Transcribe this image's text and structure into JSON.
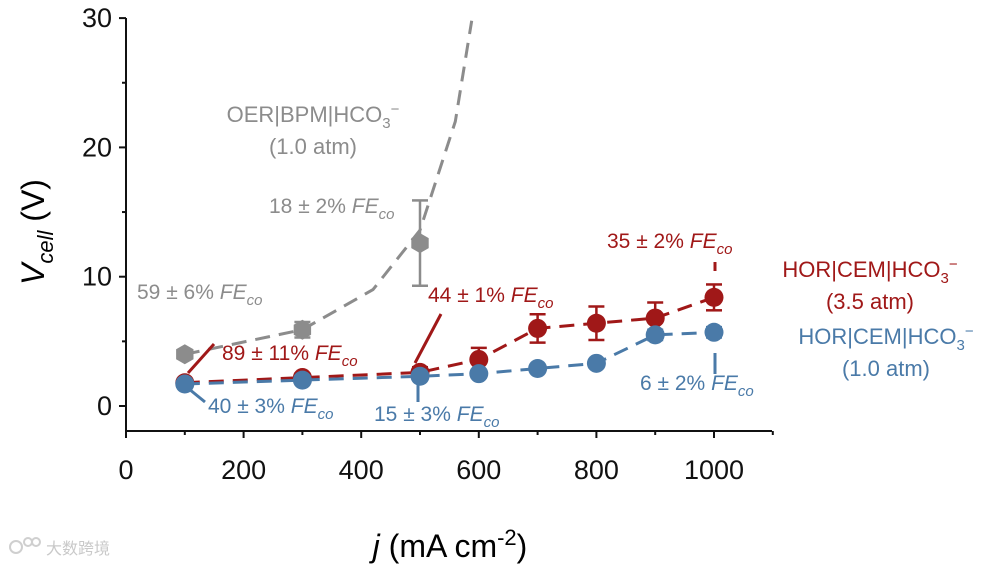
{
  "chart_data": {
    "type": "line",
    "xlabel": {
      "italic": "j",
      "text": " (mA cm",
      "sup": "-2",
      "end": ")"
    },
    "ylabel": {
      "italic": "V",
      "sub": "cell",
      "end": " (V)"
    },
    "xlim": [
      0,
      1100
    ],
    "ylim": [
      -2,
      30
    ],
    "xticks": [
      0,
      200,
      400,
      600,
      800,
      1000
    ],
    "yticks": [
      0,
      10,
      20,
      30
    ],
    "series": [
      {
        "name": "OER|BPM|HCO3− (1.0 atm)",
        "color": "#8c8c8c",
        "x": [
          100,
          300,
          500
        ],
        "y": [
          4.0,
          5.9,
          12.6
        ],
        "err": [
          0.3,
          0.6,
          3.3
        ],
        "trend": [
          [
            100,
            4.0
          ],
          [
            300,
            5.9
          ],
          [
            420,
            9.0
          ],
          [
            500,
            13.6
          ],
          [
            560,
            22.0
          ],
          [
            588,
            29.8
          ]
        ]
      },
      {
        "name": "HOR|CEM|HCO3− (3.5 atm)",
        "color": "#a01818",
        "x": [
          100,
          300,
          500,
          600,
          700,
          800,
          900,
          1000
        ],
        "y": [
          1.8,
          2.2,
          2.6,
          3.6,
          6.0,
          6.4,
          6.8,
          8.4
        ],
        "err": [
          0.2,
          0.3,
          0.4,
          0.9,
          1.1,
          1.3,
          1.2,
          1.0
        ]
      },
      {
        "name": "HOR|CEM|HCO3− (1.0 atm)",
        "color": "#4a7aa8",
        "x": [
          100,
          300,
          500,
          600,
          700,
          800,
          900,
          1000
        ],
        "y": [
          1.7,
          2.0,
          2.3,
          2.5,
          2.9,
          3.3,
          5.5,
          5.7
        ],
        "err": [
          0.2,
          0.3,
          0.3,
          0.3,
          0.3,
          0.3,
          0.4,
          0.4
        ]
      }
    ],
    "series_labels": [
      {
        "id": "oer",
        "lines": [
          [
            "OER|BPM|HCO",
            "3",
            "−"
          ],
          [
            "(1.0 atm)"
          ]
        ],
        "color": "#8c8c8c"
      },
      {
        "id": "hor35",
        "lines": [
          [
            "HOR|CEM|HCO",
            "3",
            "−"
          ],
          [
            "(3.5 atm)"
          ]
        ],
        "color": "#a01818"
      },
      {
        "id": "hor10",
        "lines": [
          [
            "HOR|CEM|HCO",
            "3",
            "−"
          ],
          [
            "(1.0 atm)"
          ]
        ],
        "color": "#4a7aa8"
      }
    ],
    "annotations": [
      {
        "id": "oer-100",
        "value": "59 ± 6% ",
        "fe": "FE",
        "sub": "co",
        "color": "#8c8c8c"
      },
      {
        "id": "oer-500",
        "value": "18 ± 2% ",
        "fe": "FE",
        "sub": "co",
        "color": "#8c8c8c"
      },
      {
        "id": "hor35-100",
        "value": "89 ± 11% ",
        "fe": "FE",
        "sub": "co",
        "color": "#a01818"
      },
      {
        "id": "hor35-500",
        "value": "44 ± 1% ",
        "fe": "FE",
        "sub": "co",
        "color": "#a01818"
      },
      {
        "id": "hor35-1000",
        "value": "35 ± 2% ",
        "fe": "FE",
        "sub": "co",
        "color": "#a01818"
      },
      {
        "id": "hor10-100",
        "value": "40 ± 3% ",
        "fe": "FE",
        "sub": "co",
        "color": "#4a7aa8"
      },
      {
        "id": "hor10-500",
        "value": "15 ± 3% ",
        "fe": "FE",
        "sub": "co",
        "color": "#4a7aa8"
      },
      {
        "id": "hor10-1000",
        "value": "6 ± 2% ",
        "fe": "FE",
        "sub": "co",
        "color": "#4a7aa8"
      }
    ]
  },
  "watermark": {
    "text": "大数跨境"
  }
}
